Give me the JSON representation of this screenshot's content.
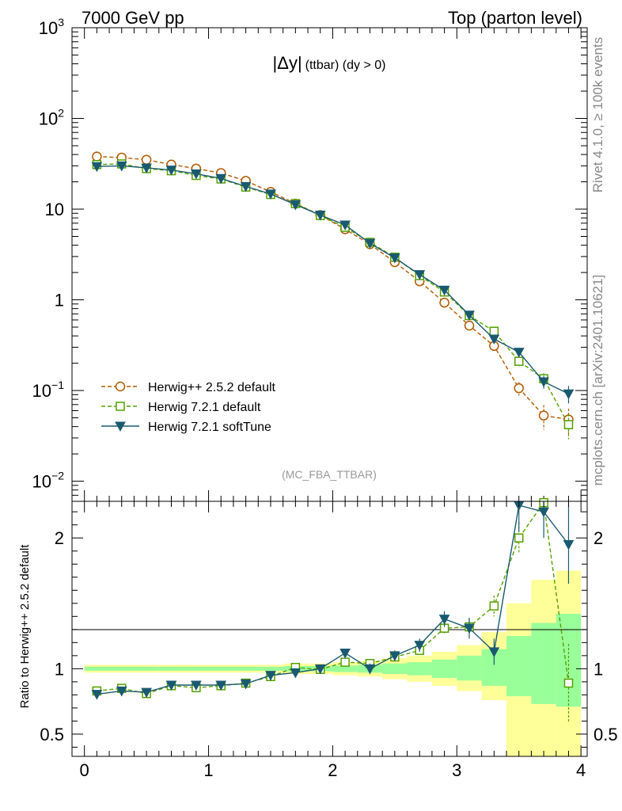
{
  "header": {
    "left": "7000 GeV pp",
    "right": "Top (parton level)"
  },
  "side_labels": {
    "rivet": "Rivet 4.1.0, ≥ 100k events",
    "mcplots": "mcplots.cern.ch [arXiv:2401.10621]"
  },
  "chart_data": [
    {
      "type": "line",
      "panel": "main",
      "title_main": "|Δy|",
      "title_sub": "(ttbar) (dy > 0)",
      "analysis": "(MC_FBA_TTBAR)",
      "xlabel": "",
      "ylabel": "",
      "yscale": "log",
      "xlim": [
        -0.1,
        4.05
      ],
      "ylim": [
        0.006,
        1000
      ],
      "y_ticks": [
        {
          "v": 1000,
          "base": "10",
          "exp": "3"
        },
        {
          "v": 100,
          "base": "10",
          "exp": "2"
        },
        {
          "v": 10,
          "base": "10",
          "exp": ""
        },
        {
          "v": 1,
          "base": "1",
          "exp": ""
        },
        {
          "v": 0.1,
          "base": "10",
          "exp": "−1"
        },
        {
          "v": 0.01,
          "base": "10",
          "exp": "−2"
        }
      ],
      "x": [
        0.1,
        0.3,
        0.5,
        0.7,
        0.9,
        1.1,
        1.3,
        1.5,
        1.7,
        1.9,
        2.1,
        2.3,
        2.5,
        2.7,
        2.9,
        3.1,
        3.3,
        3.5,
        3.7,
        3.9
      ],
      "legend": [
        {
          "name": "Herwig++ 2.5.2 default",
          "color": "#b35900",
          "marker": "circle",
          "dash": true
        },
        {
          "name": "Herwig 7.2.1 default",
          "color": "#55a000",
          "marker": "square",
          "dash": true
        },
        {
          "name": "Herwig 7.2.1 softTune",
          "color": "#1a5a70",
          "marker": "triangle-down",
          "dash": false
        }
      ],
      "series": [
        {
          "name": "Herwig++ 2.5.2 default",
          "values": [
            38,
            37,
            35,
            31,
            28,
            25,
            20.5,
            15.5,
            11.5,
            8.6,
            6.0,
            4.1,
            2.6,
            1.6,
            0.93,
            0.52,
            0.31,
            0.106,
            0.053,
            0.048
          ],
          "err": [
            0,
            0,
            0,
            0,
            0,
            0,
            0,
            0,
            0,
            0,
            0,
            0,
            0,
            0,
            0,
            0,
            0.03,
            0.018,
            0.016,
            0.015
          ]
        },
        {
          "name": "Herwig 7.2.1 default",
          "values": [
            31,
            31.5,
            28,
            26.5,
            23.5,
            21.5,
            17.5,
            14.5,
            11.5,
            8.5,
            6.3,
            4.3,
            2.95,
            1.85,
            1.22,
            0.67,
            0.45,
            0.21,
            0.135,
            0.042
          ],
          "err": [
            0,
            0,
            0,
            0,
            0,
            0,
            0,
            0,
            0,
            0,
            0,
            0,
            0,
            0,
            0,
            0,
            0.04,
            0.03,
            0.02,
            0.013
          ]
        },
        {
          "name": "Herwig 7.2.1 softTune",
          "values": [
            29.5,
            30,
            28.5,
            27,
            24.5,
            21.8,
            17.8,
            14.7,
            11.2,
            8.6,
            6.7,
            4.2,
            2.9,
            1.9,
            1.28,
            0.68,
            0.37,
            0.265,
            0.125,
            0.092
          ],
          "err": [
            0,
            0,
            0,
            0,
            0,
            0,
            0,
            0,
            0,
            0,
            0,
            0,
            0,
            0,
            0,
            0,
            0.03,
            0.03,
            0.02,
            0.02
          ]
        }
      ]
    },
    {
      "type": "line",
      "panel": "ratio",
      "xlabel": "",
      "ylabel": "Ratio to Herwig++ 2.5.2 default",
      "xlim": [
        -0.1,
        4.05
      ],
      "ylim": [
        0.33,
        2.28
      ],
      "y_ticks": [
        {
          "v": 0.5,
          "label": "0.5"
        },
        {
          "v": 1,
          "label": "1"
        },
        {
          "v": 2,
          "label": "2"
        }
      ],
      "x_ticks": [
        {
          "v": 0,
          "label": "0"
        },
        {
          "v": 1,
          "label": "1"
        },
        {
          "v": 2,
          "label": "2"
        },
        {
          "v": 3,
          "label": "3"
        },
        {
          "v": 4,
          "label": "4"
        }
      ],
      "x": [
        0.1,
        0.3,
        0.5,
        0.7,
        0.9,
        1.1,
        1.3,
        1.5,
        1.7,
        1.9,
        2.1,
        2.3,
        2.5,
        2.7,
        2.9,
        3.1,
        3.3,
        3.5,
        3.7,
        3.9
      ],
      "band_edges": [
        0,
        0.2,
        0.4,
        0.6,
        0.8,
        1.0,
        1.2,
        1.4,
        1.6,
        1.8,
        2.0,
        2.2,
        2.4,
        2.6,
        2.8,
        3.0,
        3.2,
        3.4,
        3.6,
        3.8,
        4.0
      ],
      "band_yellow": [
        [
          0.97,
          1.03
        ],
        [
          0.97,
          1.03
        ],
        [
          0.97,
          1.03
        ],
        [
          0.97,
          1.03
        ],
        [
          0.97,
          1.03
        ],
        [
          0.97,
          1.03
        ],
        [
          0.97,
          1.03
        ],
        [
          0.97,
          1.03
        ],
        [
          0.96,
          1.04
        ],
        [
          0.96,
          1.04
        ],
        [
          0.95,
          1.05
        ],
        [
          0.94,
          1.06
        ],
        [
          0.92,
          1.08
        ],
        [
          0.9,
          1.1
        ],
        [
          0.87,
          1.13
        ],
        [
          0.83,
          1.18
        ],
        [
          0.76,
          1.28
        ],
        [
          0.33,
          1.5
        ],
        [
          0.33,
          1.68
        ],
        [
          0.33,
          1.75
        ]
      ],
      "band_green": [
        [
          0.985,
          1.015
        ],
        [
          0.985,
          1.015
        ],
        [
          0.985,
          1.015
        ],
        [
          0.985,
          1.015
        ],
        [
          0.985,
          1.015
        ],
        [
          0.985,
          1.015
        ],
        [
          0.985,
          1.015
        ],
        [
          0.985,
          1.015
        ],
        [
          0.98,
          1.02
        ],
        [
          0.98,
          1.02
        ],
        [
          0.975,
          1.025
        ],
        [
          0.97,
          1.03
        ],
        [
          0.96,
          1.04
        ],
        [
          0.95,
          1.05
        ],
        [
          0.93,
          1.07
        ],
        [
          0.91,
          1.1
        ],
        [
          0.87,
          1.15
        ],
        [
          0.79,
          1.25
        ],
        [
          0.73,
          1.35
        ],
        [
          0.71,
          1.42
        ]
      ],
      "series": [
        {
          "name": "Herwig 7.2.1 default",
          "values": [
            0.83,
            0.85,
            0.81,
            0.87,
            0.855,
            0.87,
            0.89,
            0.94,
            1.01,
            0.995,
            1.05,
            1.04,
            1.09,
            1.14,
            1.31,
            1.32,
            1.48,
            2.0,
            2.27,
            0.89
          ],
          "err": [
            0,
            0,
            0,
            0,
            0,
            0,
            0,
            0,
            0,
            0,
            0,
            0,
            0,
            0,
            0.04,
            0.06,
            0.08,
            0.12,
            0.15,
            0.3
          ]
        },
        {
          "name": "Herwig 7.2.1 softTune",
          "values": [
            0.805,
            0.83,
            0.82,
            0.875,
            0.875,
            0.875,
            0.885,
            0.95,
            0.97,
            1.0,
            1.12,
            1.0,
            1.1,
            1.18,
            1.38,
            1.31,
            1.13,
            2.25,
            2.2,
            1.95
          ],
          "err": [
            0,
            0,
            0,
            0,
            0,
            0,
            0,
            0,
            0,
            0,
            0,
            0.04,
            0.04,
            0.05,
            0.06,
            0.08,
            0.1,
            0.2,
            0.2,
            0.3
          ]
        }
      ]
    }
  ]
}
